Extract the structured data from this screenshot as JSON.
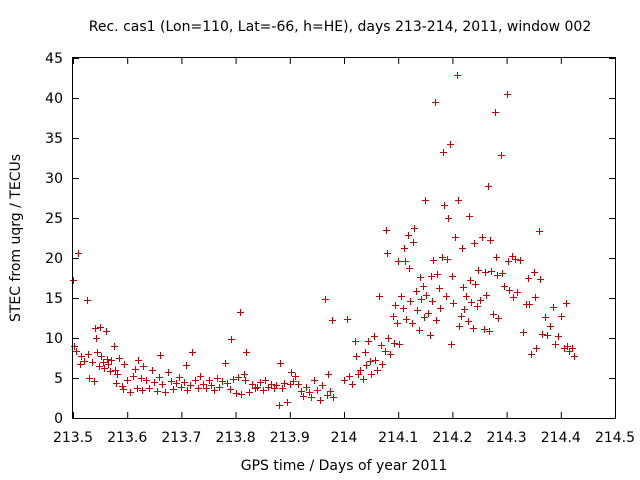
{
  "chart_data": {
    "type": "scatter",
    "title": "Rec. cas1 (Lon=110, Lat=-66, h=HE), days 213-214, 2011, window 002",
    "xlabel": "GPS time / Days of year 2011",
    "ylabel": "STEC from uqrg / TECUs",
    "xlim": [
      213.5,
      214.5
    ],
    "ylim": [
      0,
      45
    ],
    "x_ticks": [
      213.5,
      213.6,
      213.7,
      213.8,
      213.9,
      214.0,
      214.1,
      214.2,
      214.3,
      214.4,
      214.5
    ],
    "x_tick_labels": [
      "213.5",
      "213.6",
      "213.7",
      "213.8",
      "213.9",
      "214",
      "214.1",
      "214.2",
      "214.3",
      "214.4",
      "214.5"
    ],
    "y_ticks": [
      0,
      5,
      10,
      15,
      20,
      25,
      30,
      35,
      40,
      45
    ],
    "y_tick_labels": [
      "0",
      "5",
      "10",
      "15",
      "20",
      "25",
      "30",
      "35",
      "40",
      "45"
    ],
    "marker_color": "#cc0000",
    "grid": false,
    "points": [
      [
        213.5,
        17.3
      ],
      [
        213.502,
        9.0
      ],
      [
        213.505,
        8.4
      ],
      [
        213.51,
        20.6
      ],
      [
        213.512,
        6.8
      ],
      [
        213.515,
        7.8
      ],
      [
        213.52,
        7.1
      ],
      [
        213.525,
        14.8
      ],
      [
        213.528,
        8.0
      ],
      [
        213.53,
        5.0
      ],
      [
        213.535,
        7.0
      ],
      [
        213.538,
        4.6
      ],
      [
        213.54,
        11.2
      ],
      [
        213.542,
        10.0
      ],
      [
        213.545,
        8.2
      ],
      [
        213.548,
        6.5
      ],
      [
        213.55,
        11.4
      ],
      [
        213.552,
        7.8
      ],
      [
        213.555,
        7.0
      ],
      [
        213.558,
        6.2
      ],
      [
        213.56,
        10.9
      ],
      [
        213.562,
        7.4
      ],
      [
        213.565,
        6.8
      ],
      [
        213.568,
        5.9
      ],
      [
        213.57,
        7.2
      ],
      [
        213.575,
        9.0
      ],
      [
        213.578,
        6.0
      ],
      [
        213.58,
        4.4
      ],
      [
        213.582,
        5.5
      ],
      [
        213.585,
        7.5
      ],
      [
        213.59,
        4.0
      ],
      [
        213.592,
        3.6
      ],
      [
        213.595,
        6.8
      ],
      [
        213.6,
        4.8
      ],
      [
        213.605,
        3.2
      ],
      [
        213.61,
        5.2
      ],
      [
        213.615,
        6.1
      ],
      [
        213.618,
        3.8
      ],
      [
        213.62,
        7.3
      ],
      [
        213.625,
        5.0
      ],
      [
        213.628,
        3.5
      ],
      [
        213.63,
        6.5
      ],
      [
        213.635,
        4.8
      ],
      [
        213.64,
        3.7
      ],
      [
        213.645,
        6.0
      ],
      [
        213.65,
        4.5
      ],
      [
        213.655,
        3.4
      ],
      [
        213.658,
        5.1
      ],
      [
        213.66,
        7.9
      ],
      [
        213.665,
        4.2
      ],
      [
        213.67,
        3.3
      ],
      [
        213.675,
        5.8
      ],
      [
        213.68,
        4.6
      ],
      [
        213.685,
        3.6
      ],
      [
        213.69,
        4.4
      ],
      [
        213.695,
        5.1
      ],
      [
        213.7,
        3.9
      ],
      [
        213.705,
        4.5
      ],
      [
        213.708,
        6.6
      ],
      [
        213.71,
        3.5
      ],
      [
        213.715,
        4.1
      ],
      [
        213.72,
        8.3
      ],
      [
        213.725,
        4.8
      ],
      [
        213.73,
        3.7
      ],
      [
        213.735,
        5.2
      ],
      [
        213.74,
        4.3
      ],
      [
        213.745,
        3.8
      ],
      [
        213.75,
        4.7
      ],
      [
        213.755,
        4.1
      ],
      [
        213.76,
        3.5
      ],
      [
        213.765,
        5.0
      ],
      [
        213.77,
        3.9
      ],
      [
        213.775,
        4.6
      ],
      [
        213.78,
        6.9
      ],
      [
        213.785,
        4.4
      ],
      [
        213.79,
        3.6
      ],
      [
        213.792,
        9.9
      ],
      [
        213.795,
        4.9
      ],
      [
        213.8,
        3.1
      ],
      [
        213.805,
        5.1
      ],
      [
        213.808,
        13.3
      ],
      [
        213.81,
        3.0
      ],
      [
        213.815,
        5.5
      ],
      [
        213.818,
        4.8
      ],
      [
        213.82,
        8.3
      ],
      [
        213.825,
        3.3
      ],
      [
        213.83,
        4.2
      ],
      [
        213.835,
        3.7
      ],
      [
        213.84,
        3.9
      ],
      [
        213.845,
        4.5
      ],
      [
        213.85,
        3.5
      ],
      [
        213.855,
        4.8
      ],
      [
        213.86,
        3.9
      ],
      [
        213.865,
        4.2
      ],
      [
        213.87,
        3.8
      ],
      [
        213.875,
        4.1
      ],
      [
        213.88,
        1.6
      ],
      [
        213.882,
        6.9
      ],
      [
        213.885,
        3.8
      ],
      [
        213.89,
        4.4
      ],
      [
        213.895,
        2.0
      ],
      [
        213.9,
        4.2
      ],
      [
        213.902,
        5.8
      ],
      [
        213.905,
        4.6
      ],
      [
        213.91,
        5.3
      ],
      [
        213.915,
        4.2
      ],
      [
        213.92,
        3.4
      ],
      [
        213.925,
        2.7
      ],
      [
        213.93,
        3.9
      ],
      [
        213.935,
        3.2
      ],
      [
        213.94,
        2.6
      ],
      [
        213.945,
        4.7
      ],
      [
        213.95,
        3.5
      ],
      [
        213.955,
        2.3
      ],
      [
        213.96,
        4.1
      ],
      [
        213.965,
        14.9
      ],
      [
        213.968,
        2.9
      ],
      [
        213.97,
        5.5
      ],
      [
        213.975,
        3.4
      ],
      [
        213.978,
        12.3
      ],
      [
        213.98,
        2.6
      ],
      [
        214.0,
        4.7
      ],
      [
        214.005,
        12.4
      ],
      [
        214.01,
        5.2
      ],
      [
        214.015,
        4.3
      ],
      [
        214.02,
        9.6
      ],
      [
        214.022,
        7.8
      ],
      [
        214.025,
        5.5
      ],
      [
        214.03,
        6.0
      ],
      [
        214.035,
        4.9
      ],
      [
        214.038,
        8.3
      ],
      [
        214.04,
        6.6
      ],
      [
        214.045,
        9.6
      ],
      [
        214.048,
        7.1
      ],
      [
        214.05,
        5.5
      ],
      [
        214.055,
        10.3
      ],
      [
        214.058,
        7.2
      ],
      [
        214.06,
        6.0
      ],
      [
        214.065,
        15.2
      ],
      [
        214.068,
        9.1
      ],
      [
        214.07,
        6.8
      ],
      [
        214.075,
        8.4
      ],
      [
        214.078,
        23.5
      ],
      [
        214.08,
        20.6
      ],
      [
        214.082,
        10.0
      ],
      [
        214.085,
        8.0
      ],
      [
        214.09,
        12.8
      ],
      [
        214.092,
        9.4
      ],
      [
        214.095,
        14.1
      ],
      [
        214.098,
        11.9
      ],
      [
        214.1,
        19.6
      ],
      [
        214.102,
        9.2
      ],
      [
        214.105,
        15.3
      ],
      [
        214.108,
        13.8
      ],
      [
        214.11,
        21.2
      ],
      [
        214.112,
        19.6
      ],
      [
        214.115,
        12.4
      ],
      [
        214.118,
        22.9
      ],
      [
        214.12,
        18.8
      ],
      [
        214.122,
        14.6
      ],
      [
        214.125,
        11.9
      ],
      [
        214.128,
        22.0
      ],
      [
        214.13,
        23.8
      ],
      [
        214.132,
        15.9
      ],
      [
        214.135,
        13.5
      ],
      [
        214.138,
        11.0
      ],
      [
        214.14,
        17.6
      ],
      [
        214.142,
        14.9
      ],
      [
        214.145,
        16.5
      ],
      [
        214.148,
        12.6
      ],
      [
        214.15,
        27.2
      ],
      [
        214.152,
        15.4
      ],
      [
        214.155,
        13.1
      ],
      [
        214.158,
        10.4
      ],
      [
        214.16,
        17.8
      ],
      [
        214.162,
        14.6
      ],
      [
        214.165,
        19.8
      ],
      [
        214.168,
        39.5
      ],
      [
        214.17,
        12.3
      ],
      [
        214.172,
        18.0
      ],
      [
        214.175,
        16.2
      ],
      [
        214.178,
        13.7
      ],
      [
        214.18,
        20.1
      ],
      [
        214.182,
        33.2
      ],
      [
        214.185,
        26.6
      ],
      [
        214.188,
        15.2
      ],
      [
        214.19,
        19.9
      ],
      [
        214.192,
        25.0
      ],
      [
        214.195,
        34.3
      ],
      [
        214.198,
        9.3
      ],
      [
        214.2,
        17.7
      ],
      [
        214.202,
        14.4
      ],
      [
        214.205,
        22.6
      ],
      [
        214.208,
        42.9
      ],
      [
        214.21,
        27.2
      ],
      [
        214.212,
        11.5
      ],
      [
        214.215,
        12.7
      ],
      [
        214.218,
        21.3
      ],
      [
        214.22,
        16.4
      ],
      [
        214.222,
        13.6
      ],
      [
        214.225,
        15.2
      ],
      [
        214.228,
        12.1
      ],
      [
        214.23,
        25.2
      ],
      [
        214.232,
        17.2
      ],
      [
        214.235,
        14.5
      ],
      [
        214.238,
        11.3
      ],
      [
        214.24,
        21.9
      ],
      [
        214.242,
        16.8
      ],
      [
        214.245,
        14.0
      ],
      [
        214.248,
        18.5
      ],
      [
        214.25,
        14.8
      ],
      [
        214.255,
        22.6
      ],
      [
        214.258,
        11.1
      ],
      [
        214.26,
        18.2
      ],
      [
        214.262,
        15.4
      ],
      [
        214.265,
        29.0
      ],
      [
        214.268,
        10.9
      ],
      [
        214.27,
        22.3
      ],
      [
        214.272,
        18.4
      ],
      [
        214.275,
        13.0
      ],
      [
        214.278,
        38.3
      ],
      [
        214.28,
        20.1
      ],
      [
        214.282,
        17.9
      ],
      [
        214.285,
        12.5
      ],
      [
        214.29,
        32.9
      ],
      [
        214.292,
        18.1
      ],
      [
        214.295,
        16.5
      ],
      [
        214.3,
        40.5
      ],
      [
        214.302,
        19.6
      ],
      [
        214.305,
        16.0
      ],
      [
        214.31,
        20.3
      ],
      [
        214.312,
        15.1
      ],
      [
        214.315,
        19.9
      ],
      [
        214.32,
        15.8
      ],
      [
        214.325,
        19.8
      ],
      [
        214.33,
        10.7
      ],
      [
        214.335,
        14.3
      ],
      [
        214.34,
        17.5
      ],
      [
        214.342,
        14.2
      ],
      [
        214.345,
        8.0
      ],
      [
        214.35,
        18.3
      ],
      [
        214.352,
        15.1
      ],
      [
        214.355,
        8.7
      ],
      [
        214.36,
        23.4
      ],
      [
        214.362,
        17.4
      ],
      [
        214.365,
        10.5
      ],
      [
        214.37,
        12.6
      ],
      [
        214.375,
        10.4
      ],
      [
        214.38,
        11.5
      ],
      [
        214.385,
        13.9
      ],
      [
        214.39,
        9.2
      ],
      [
        214.395,
        10.3
      ],
      [
        214.4,
        12.8
      ],
      [
        214.405,
        8.7
      ],
      [
        214.41,
        14.4
      ],
      [
        214.412,
        9.0
      ],
      [
        214.415,
        8.4
      ],
      [
        214.42,
        8.8
      ],
      [
        214.425,
        7.8
      ]
    ]
  }
}
